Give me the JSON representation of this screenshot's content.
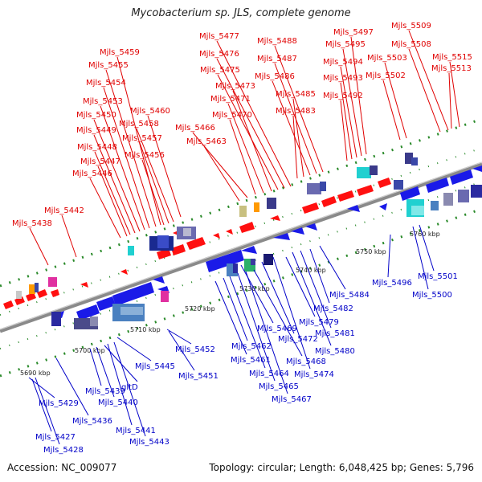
{
  "title": "Mycobacterium sp. JLS, complete genome",
  "footer": {
    "accession": "Accession: NC_009077",
    "topology": "Topology: circular; Length: 6,048,425 bp; Genes: 5,796"
  },
  "colors": {
    "top_label": "#e00000",
    "bottom_label": "#0000c8",
    "backbone": "#8a8a8a",
    "tick": "#2a8a2a"
  },
  "kbp_marks": [
    "5690 kbp",
    "5700 kbp",
    "5710 kbp",
    "5720 kbp",
    "5730 kbp",
    "5740 kbp",
    "5750 kbp",
    "5760 kbp"
  ],
  "top_labels": [
    "Mjls_5438",
    "Mjls_5442",
    "Mjls_5446",
    "Mjls_5447",
    "Mjls_5448",
    "Mjls_5449",
    "Mjls_5450",
    "Mjls_5453",
    "Mjls_5454",
    "Mjls_5455",
    "Mjls_5459",
    "Mjls_5460",
    "Mjls_5458",
    "Mjls_5457",
    "Mjls_5456",
    "Mjls_5463",
    "Mjls_5466",
    "Mjls_5470",
    "Mjls_5471",
    "Mjls_5473",
    "Mjls_5475",
    "Mjls_5476",
    "Mjls_5477",
    "Mjls_5483",
    "Mjls_5485",
    "Mjls_5486",
    "Mjls_5487",
    "Mjls_5488",
    "Mjls_5492",
    "Mjls_5493",
    "Mjls_5494",
    "Mjls_5495",
    "Mjls_5497",
    "Mjls_5502",
    "Mjls_5503",
    "Mjls_5508",
    "Mjls_5509",
    "Mjls_5513",
    "Mjls_5515"
  ],
  "bottom_labels": [
    "Mjls_5429",
    "Mjls_5436",
    "Mjls_5427",
    "Mjls_5428",
    "Mjls_5439",
    "Mjls_5440",
    "gltD",
    "Mjls_5441",
    "Mjls_5443",
    "Mjls_5445",
    "Mjls_5451",
    "Mjls_5452",
    "Mjls_5461",
    "Mjls_5462",
    "Mjls_5464",
    "Mjls_5465",
    "Mjls_5467",
    "Mjls_5468",
    "Mjls_5469",
    "Mjls_5472",
    "Mjls_5474",
    "Mjls_5479",
    "Mjls_5480",
    "Mjls_5481",
    "Mjls_5482",
    "Mjls_5484",
    "Mjls_5496",
    "Mjls_5500",
    "Mjls_5501"
  ]
}
